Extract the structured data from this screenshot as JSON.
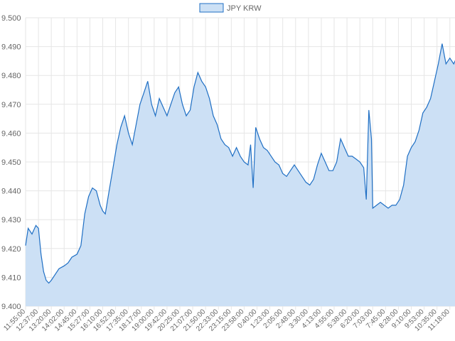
{
  "chart_data": {
    "type": "area",
    "title": "",
    "xlabel": "",
    "ylabel": "",
    "grid": true,
    "legend_placement": "top",
    "ylim": [
      9.4,
      9.5
    ],
    "yticks": [
      "9.400",
      "9.410",
      "9.420",
      "9.430",
      "9.440",
      "9.450",
      "9.460",
      "9.470",
      "9.480",
      "9.490",
      "9.500"
    ],
    "xtick_labels": [
      "11:55:00",
      "12:37:00",
      "13:20:00",
      "14:02:00",
      "14:45:00",
      "15:27:00",
      "16:10:00",
      "16:52:00",
      "17:35:00",
      "18:17:00",
      "19:00:00",
      "19:42:00",
      "20:25:00",
      "21:07:00",
      "21:50:00",
      "22:33:00",
      "23:15:00",
      "23:58:00",
      "0:40:00",
      "1:23:00",
      "2:05:00",
      "2:48:00",
      "3:30:00",
      "4:13:00",
      "4:55:00",
      "5:38:00",
      "6:20:00",
      "7:03:00",
      "7:45:00",
      "8:28:00",
      "9:10:00",
      "9:53:00",
      "10:35:00",
      "11:18:00"
    ],
    "series": [
      {
        "name": "JPY KRW",
        "color": "#1f6fc4",
        "fill": "#cce0f5",
        "points": [
          [
            0,
            9.421
          ],
          [
            0.2,
            9.427
          ],
          [
            0.5,
            9.425
          ],
          [
            0.8,
            9.428
          ],
          [
            1.0,
            9.427
          ],
          [
            1.2,
            9.418
          ],
          [
            1.4,
            9.412
          ],
          [
            1.6,
            9.409
          ],
          [
            1.8,
            9.408
          ],
          [
            2.0,
            9.409
          ],
          [
            2.3,
            9.411
          ],
          [
            2.6,
            9.413
          ],
          [
            3.0,
            9.414
          ],
          [
            3.3,
            9.415
          ],
          [
            3.6,
            9.417
          ],
          [
            4.0,
            9.418
          ],
          [
            4.3,
            9.421
          ],
          [
            4.6,
            9.432
          ],
          [
            4.9,
            9.438
          ],
          [
            5.2,
            9.441
          ],
          [
            5.5,
            9.44
          ],
          [
            5.8,
            9.435
          ],
          [
            6.0,
            9.433
          ],
          [
            6.2,
            9.432
          ],
          [
            6.5,
            9.44
          ],
          [
            6.8,
            9.448
          ],
          [
            7.1,
            9.456
          ],
          [
            7.4,
            9.462
          ],
          [
            7.7,
            9.466
          ],
          [
            8.0,
            9.46
          ],
          [
            8.3,
            9.456
          ],
          [
            8.6,
            9.463
          ],
          [
            8.9,
            9.47
          ],
          [
            9.2,
            9.474
          ],
          [
            9.5,
            9.478
          ],
          [
            9.8,
            9.47
          ],
          [
            10.1,
            9.466
          ],
          [
            10.4,
            9.472
          ],
          [
            10.7,
            9.469
          ],
          [
            11.0,
            9.466
          ],
          [
            11.3,
            9.47
          ],
          [
            11.6,
            9.474
          ],
          [
            11.9,
            9.476
          ],
          [
            12.2,
            9.47
          ],
          [
            12.5,
            9.466
          ],
          [
            12.8,
            9.468
          ],
          [
            13.1,
            9.476
          ],
          [
            13.4,
            9.481
          ],
          [
            13.7,
            9.478
          ],
          [
            14.0,
            9.476
          ],
          [
            14.3,
            9.472
          ],
          [
            14.6,
            9.466
          ],
          [
            14.9,
            9.463
          ],
          [
            15.2,
            9.458
          ],
          [
            15.5,
            9.456
          ],
          [
            15.8,
            9.455
          ],
          [
            16.1,
            9.452
          ],
          [
            16.4,
            9.455
          ],
          [
            16.7,
            9.452
          ],
          [
            17.0,
            9.45
          ],
          [
            17.3,
            9.449
          ],
          [
            17.5,
            9.456
          ],
          [
            17.7,
            9.441
          ],
          [
            17.9,
            9.462
          ],
          [
            18.2,
            9.458
          ],
          [
            18.5,
            9.455
          ],
          [
            18.8,
            9.454
          ],
          [
            19.1,
            9.452
          ],
          [
            19.4,
            9.45
          ],
          [
            19.7,
            9.449
          ],
          [
            20.0,
            9.446
          ],
          [
            20.3,
            9.445
          ],
          [
            20.6,
            9.447
          ],
          [
            20.9,
            9.449
          ],
          [
            21.2,
            9.447
          ],
          [
            21.5,
            9.445
          ],
          [
            21.8,
            9.443
          ],
          [
            22.1,
            9.442
          ],
          [
            22.4,
            9.444
          ],
          [
            22.7,
            9.449
          ],
          [
            23.0,
            9.453
          ],
          [
            23.3,
            9.45
          ],
          [
            23.6,
            9.447
          ],
          [
            23.9,
            9.447
          ],
          [
            24.2,
            9.45
          ],
          [
            24.5,
            9.458
          ],
          [
            24.8,
            9.455
          ],
          [
            25.1,
            9.452
          ],
          [
            25.4,
            9.452
          ],
          [
            25.7,
            9.451
          ],
          [
            26.0,
            9.45
          ],
          [
            26.3,
            9.448
          ],
          [
            26.5,
            9.437
          ],
          [
            26.7,
            9.468
          ],
          [
            26.9,
            9.458
          ],
          [
            27.0,
            9.434
          ],
          [
            27.3,
            9.435
          ],
          [
            27.6,
            9.436
          ],
          [
            27.9,
            9.435
          ],
          [
            28.2,
            9.434
          ],
          [
            28.5,
            9.435
          ],
          [
            28.8,
            9.435
          ],
          [
            29.1,
            9.437
          ],
          [
            29.4,
            9.442
          ],
          [
            29.7,
            9.452
          ],
          [
            30.0,
            9.455
          ],
          [
            30.3,
            9.457
          ],
          [
            30.6,
            9.461
          ],
          [
            30.9,
            9.467
          ],
          [
            31.2,
            9.469
          ],
          [
            31.5,
            9.472
          ],
          [
            31.8,
            9.478
          ],
          [
            32.1,
            9.484
          ],
          [
            32.4,
            9.491
          ],
          [
            32.7,
            9.484
          ],
          [
            33.0,
            9.486
          ],
          [
            33.3,
            9.484
          ],
          [
            33.6,
            9.487
          ]
        ]
      }
    ]
  }
}
